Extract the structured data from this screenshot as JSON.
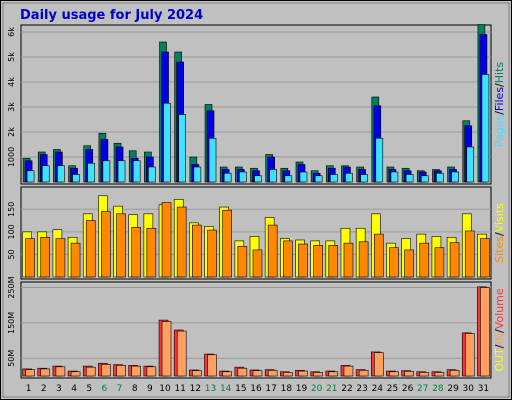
{
  "chart_data": {
    "type": "bar",
    "title": "Daily usage for July 2024",
    "categories": [
      "1",
      "2",
      "3",
      "4",
      "5",
      "6",
      "7",
      "8",
      "9",
      "10",
      "11",
      "12",
      "13",
      "14",
      "15",
      "16",
      "17",
      "18",
      "19",
      "20",
      "21",
      "22",
      "23",
      "24",
      "25",
      "26",
      "27",
      "28",
      "29",
      "30",
      "31"
    ],
    "weekend_days": [
      "6",
      "7",
      "13",
      "14",
      "20",
      "21",
      "27",
      "28"
    ],
    "colors": {
      "title": "#0000cc",
      "plot_bg": "#c0c0c0",
      "frame_bg": "#ededed",
      "weekday": "#000000",
      "weekend": "#008040",
      "hits": "#008060",
      "files": "#0000e0",
      "pages": "#40e0ff",
      "visits": "#ffff00",
      "sites": "#ff8800",
      "kbin": "#ff3333",
      "kbout": "#ffa060"
    },
    "panels": [
      {
        "name": "hits-files-pages",
        "ylim": [
          0,
          6200
        ],
        "ticks": [
          {
            "v": 1000,
            "l": "1000"
          },
          {
            "v": 2000,
            "l": "2k"
          },
          {
            "v": 3000,
            "l": "3k"
          },
          {
            "v": 4000,
            "l": "4k"
          },
          {
            "v": 5000,
            "l": "5k"
          },
          {
            "v": 6000,
            "l": "6k"
          }
        ],
        "legend": [
          {
            "text": "Hits",
            "color_key": "hits"
          },
          {
            "text": "/",
            "color_key": "sep"
          },
          {
            "text": "Files",
            "color_key": "files"
          },
          {
            "text": "/",
            "color_key": "sep"
          },
          {
            "text": "Pages",
            "color_key": "pages"
          }
        ],
        "series": [
          {
            "name": "Hits",
            "color_key": "hits",
            "values": [
              950,
              1200,
              1300,
              650,
              1450,
              1950,
              1550,
              1250,
              1200,
              5600,
              5200,
              1000,
              3100,
              600,
              600,
              550,
              1100,
              550,
              800,
              450,
              650,
              650,
              600,
              3400,
              600,
              550,
              450,
              500,
              600,
              2450,
              6300
            ]
          },
          {
            "name": "Files",
            "color_key": "files",
            "values": [
              850,
              1100,
              1200,
              550,
              1300,
              1700,
              1400,
              950,
              1000,
              5200,
              4800,
              700,
              2850,
              500,
              500,
              450,
              1000,
              450,
              700,
              350,
              550,
              600,
              500,
              3050,
              500,
              450,
              400,
              450,
              500,
              2250,
              5900
            ]
          },
          {
            "name": "Pages",
            "color_key": "pages",
            "values": [
              450,
              650,
              650,
              300,
              750,
              850,
              850,
              850,
              600,
              3150,
              2700,
              600,
              1750,
              350,
              400,
              250,
              500,
              250,
              400,
              250,
              300,
              350,
              300,
              1750,
              400,
              300,
              250,
              350,
              400,
              1400,
              4300
            ]
          }
        ]
      },
      {
        "name": "visits-sites",
        "ylim": [
          0,
          195
        ],
        "ticks": [
          {
            "v": 50,
            "l": "50"
          },
          {
            "v": 100,
            "l": "100"
          },
          {
            "v": 150,
            "l": "150"
          }
        ],
        "legend": [
          {
            "text": "Visits",
            "color_key": "visits"
          },
          {
            "text": "/",
            "color_key": "sep"
          },
          {
            "text": "Sites",
            "color_key": "sites"
          }
        ],
        "series": [
          {
            "name": "Visits",
            "color_key": "visits",
            "values": [
              100,
              100,
              105,
              88,
              140,
              180,
              157,
              138,
              140,
              160,
              172,
              120,
              112,
              155,
              80,
              90,
              132,
              85,
              82,
              80,
              80,
              108,
              108,
              140,
              75,
              85,
              95,
              90,
              88,
              140,
              95
            ]
          },
          {
            "name": "Sites",
            "color_key": "sites",
            "values": [
              85,
              88,
              85,
              75,
              125,
              145,
              140,
              110,
              108,
              165,
              155,
              115,
              104,
              148,
              68,
              60,
              115,
              80,
              73,
              70,
              70,
              75,
              78,
              95,
              65,
              60,
              75,
              65,
              76,
              102,
              85
            ]
          }
        ]
      },
      {
        "name": "volume",
        "ylim": [
          0,
          260
        ],
        "ticks": [
          {
            "v": 50,
            "l": "50M"
          },
          {
            "v": 150,
            "l": "150M"
          },
          {
            "v": 250,
            "l": "250M"
          }
        ],
        "legend": [
          {
            "text": "Volume",
            "color_key": "kbin"
          },
          {
            "text": "/",
            "color_key": "sep"
          },
          {
            "text": "IN",
            "color_key": "kbout"
          },
          {
            "text": "/",
            "color_key": "sep"
          },
          {
            "text": "OUT",
            "color_key": "visits"
          }
        ],
        "series": [
          {
            "name": "Volume",
            "color_key": "kbin",
            "values": [
              20,
              22,
              28,
              14,
              28,
              36,
              32,
              30,
              28,
              158,
              130,
              17,
              62,
              14,
              25,
              17,
              18,
              12,
              16,
              12,
              14,
              30,
              18,
              68,
              14,
              15,
              12,
              12,
              18,
              122,
              252
            ]
          },
          {
            "name": "KB",
            "color_key": "kbout",
            "values": [
              18,
              20,
              26,
              12,
              25,
              33,
              30,
              28,
              26,
              154,
              127,
              15,
              60,
              12,
              22,
              15,
              16,
              10,
              14,
              10,
              12,
              28,
              16,
              66,
              12,
              13,
              10,
              10,
              16,
              120,
              250
            ]
          }
        ]
      }
    ]
  }
}
